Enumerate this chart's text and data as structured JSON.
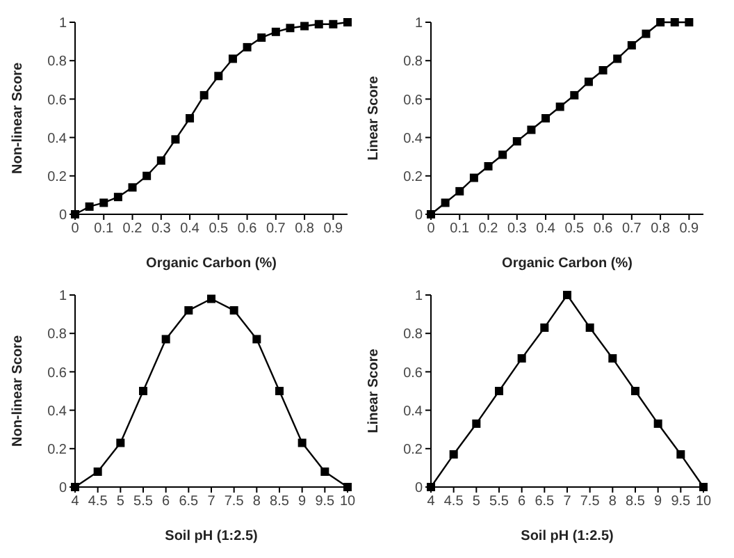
{
  "chart_data": [
    {
      "type": "line",
      "xlabel": "Organic Carbon (%)",
      "ylabel": "Non-linear Score",
      "x": [
        0,
        0.05,
        0.1,
        0.15,
        0.2,
        0.25,
        0.3,
        0.35,
        0.4,
        0.45,
        0.5,
        0.55,
        0.6,
        0.65,
        0.7,
        0.75,
        0.8,
        0.85,
        0.9,
        0.95
      ],
      "series": [
        {
          "color": "#000000",
          "values": [
            0,
            0.04,
            0.06,
            0.09,
            0.14,
            0.2,
            0.28,
            0.39,
            0.5,
            0.62,
            0.72,
            0.81,
            0.87,
            0.92,
            0.95,
            0.97,
            0.98,
            0.99,
            0.99,
            1
          ]
        }
      ],
      "xlim": [
        0,
        0.95
      ],
      "xticks": [
        0,
        0.1,
        0.2,
        0.3,
        0.4,
        0.5,
        0.6,
        0.7,
        0.8,
        0.9
      ],
      "ylim": [
        0,
        1
      ],
      "yticks": [
        0,
        0.2,
        0.4,
        0.6,
        0.8,
        1
      ],
      "grid": false,
      "marker": "square",
      "line_style": "solid"
    },
    {
      "type": "line",
      "xlabel": "Organic Carbon (%)",
      "ylabel": "Linear Score",
      "x": [
        0,
        0.05,
        0.1,
        0.15,
        0.2,
        0.25,
        0.3,
        0.35,
        0.4,
        0.45,
        0.5,
        0.55,
        0.6,
        0.65,
        0.7,
        0.75,
        0.8,
        0.85,
        0.9
      ],
      "series": [
        {
          "color": "#000000",
          "values": [
            0,
            0.06,
            0.12,
            0.19,
            0.25,
            0.31,
            0.38,
            0.44,
            0.5,
            0.56,
            0.62,
            0.69,
            0.75,
            0.81,
            0.88,
            0.94,
            1,
            1,
            1
          ]
        }
      ],
      "xlim": [
        0,
        0.95
      ],
      "xticks": [
        0,
        0.1,
        0.2,
        0.3,
        0.4,
        0.5,
        0.6,
        0.7,
        0.8,
        0.9
      ],
      "ylim": [
        0,
        1
      ],
      "yticks": [
        0,
        0.2,
        0.4,
        0.6,
        0.8,
        1
      ],
      "grid": false,
      "marker": "square",
      "line_style": "solid"
    },
    {
      "type": "line",
      "xlabel": "Soil pH (1:2.5)",
      "ylabel": "Non-linear Score",
      "x": [
        4,
        4.5,
        5,
        5.5,
        6,
        6.5,
        7,
        7.5,
        8,
        8.5,
        9,
        9.5,
        10
      ],
      "series": [
        {
          "color": "#000000",
          "values": [
            0,
            0.08,
            0.23,
            0.5,
            0.77,
            0.92,
            0.98,
            0.92,
            0.77,
            0.5,
            0.23,
            0.08,
            0
          ]
        }
      ],
      "xlim": [
        4,
        10
      ],
      "xticks": [
        4,
        4.5,
        5,
        5.5,
        6,
        6.5,
        7,
        7.5,
        8,
        8.5,
        9,
        9.5,
        10
      ],
      "ylim": [
        0,
        1
      ],
      "yticks": [
        0,
        0.2,
        0.4,
        0.6,
        0.8,
        1
      ],
      "grid": false,
      "marker": "square",
      "line_style": "solid"
    },
    {
      "type": "line",
      "xlabel": "Soil pH (1:2.5)",
      "ylabel": "Linear Score",
      "x": [
        4,
        4.5,
        5,
        5.5,
        6,
        6.5,
        7,
        7.5,
        8,
        8.5,
        9,
        9.5,
        10
      ],
      "series": [
        {
          "color": "#000000",
          "values": [
            0,
            0.17,
            0.33,
            0.5,
            0.67,
            0.83,
            1,
            0.83,
            0.67,
            0.5,
            0.33,
            0.17,
            0
          ]
        }
      ],
      "xlim": [
        4,
        10
      ],
      "xticks": [
        4,
        4.5,
        5,
        5.5,
        6,
        6.5,
        7,
        7.5,
        8,
        8.5,
        9,
        9.5,
        10
      ],
      "ylim": [
        0,
        1
      ],
      "yticks": [
        0,
        0.2,
        0.4,
        0.6,
        0.8,
        1
      ],
      "grid": false,
      "marker": "square",
      "line_style": "solid"
    }
  ]
}
